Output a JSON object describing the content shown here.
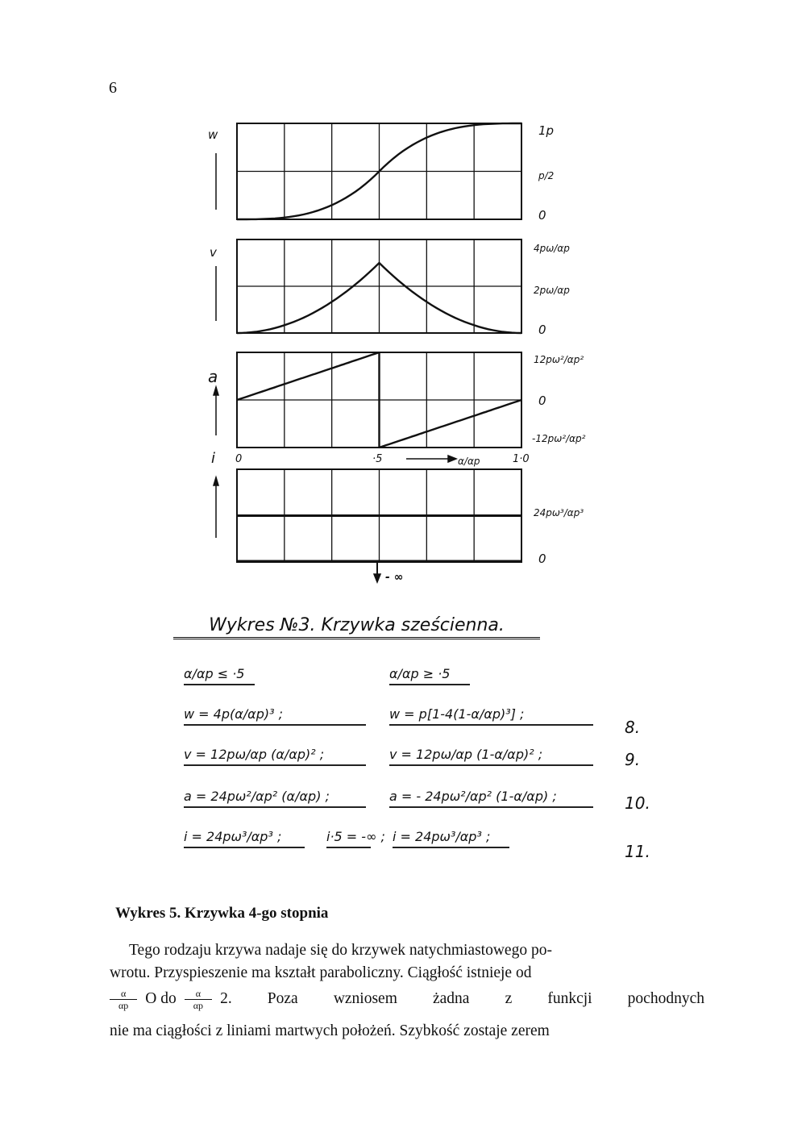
{
  "page_number": "6",
  "diagram": {
    "panels": [
      {
        "axis_label": "w",
        "right_labels": [
          "1p",
          "p/2",
          "0"
        ]
      },
      {
        "axis_label": "v",
        "right_labels": [
          "4pω/αp",
          "2pω/αp",
          "0"
        ]
      },
      {
        "axis_label": "a",
        "right_labels": [
          "12pω²/αp²",
          "0",
          "-12pω²/αp²"
        ]
      },
      {
        "axis_label": "i",
        "right_labels": [
          "24pω³/αp³",
          "0"
        ]
      }
    ],
    "x_ticks": [
      "0",
      "·5",
      "1·0"
    ],
    "x_axis_label": "α/αp",
    "infinity_label": "- ∞"
  },
  "caption": "Wykres №3. Krzywka sześcienna.",
  "formulas": {
    "conditions": [
      "α/αp ≤ ·5",
      "α/αp ≥ ·5"
    ],
    "rows": [
      {
        "left": "w = 4p(α/αp)³ ;",
        "right": "w = p[1-4(1-α/αp)³] ;",
        "number": "8."
      },
      {
        "left": "v = 12pω/αp (α/αp)² ;",
        "right": "v = 12pω/αp (1-α/αp)² ;",
        "number": "9."
      },
      {
        "left": "a = 24pω²/αp² (α/αp) ;",
        "right": "a = - 24pω²/αp² (1-α/αp) ;",
        "number": "10."
      },
      {
        "left": "i = 24pω³/αp³ ;",
        "middle": "i·5 = -∞ ;",
        "right": "i = 24pω³/αp³ ;",
        "number": "11."
      }
    ]
  },
  "section_heading": "Wykres 5. Krzywka 4-go stopnia",
  "paragraph": {
    "line1": "Tego rodzaju krzywa nadaje się do krzywek natychmiastowego po-",
    "line2": "wrotu. Przyspieszenie ma kształt paraboliczny. Ciągłość istnieje od",
    "frac_num": "α",
    "frac_den": "αp",
    "line3a": "O do",
    "line3b": "2. Poza wzniosem żadna z funkcji pochodnych",
    "line4": "nie ma ciągłości z liniami martwych położeń. Szybkość zostaje zerem"
  }
}
